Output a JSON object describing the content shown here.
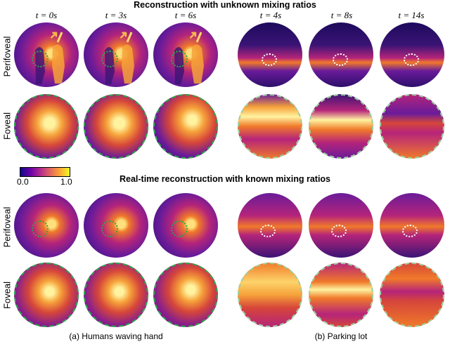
{
  "titles": {
    "top": "Reconstruction with unknown mixing ratios",
    "bottom": "Real-time reconstruction with known mixing ratios"
  },
  "time_labels": {
    "humans": [
      "t = 0s",
      "t = 3s",
      "t = 6s"
    ],
    "parking": [
      "t = 4s",
      "t = 8s",
      "t = 14s"
    ]
  },
  "row_labels": {
    "peri_top": "Perifoveal",
    "fov_top": "Foveal",
    "peri_bottom": "Perifoveal",
    "fov_bottom": "Foveal"
  },
  "colorbar": {
    "min_label": "0.0",
    "max_label": "1.0"
  },
  "captions": {
    "a": "(a) Humans waving hand",
    "b": "(b) Parking lot"
  },
  "colors": {
    "dark": "#1d0a5c",
    "purple": "#6a1b9a",
    "magenta": "#b5247a",
    "orange": "#f07a2a",
    "yellow": "#fff3a0",
    "fovea_ring": "#2aa84a"
  }
}
